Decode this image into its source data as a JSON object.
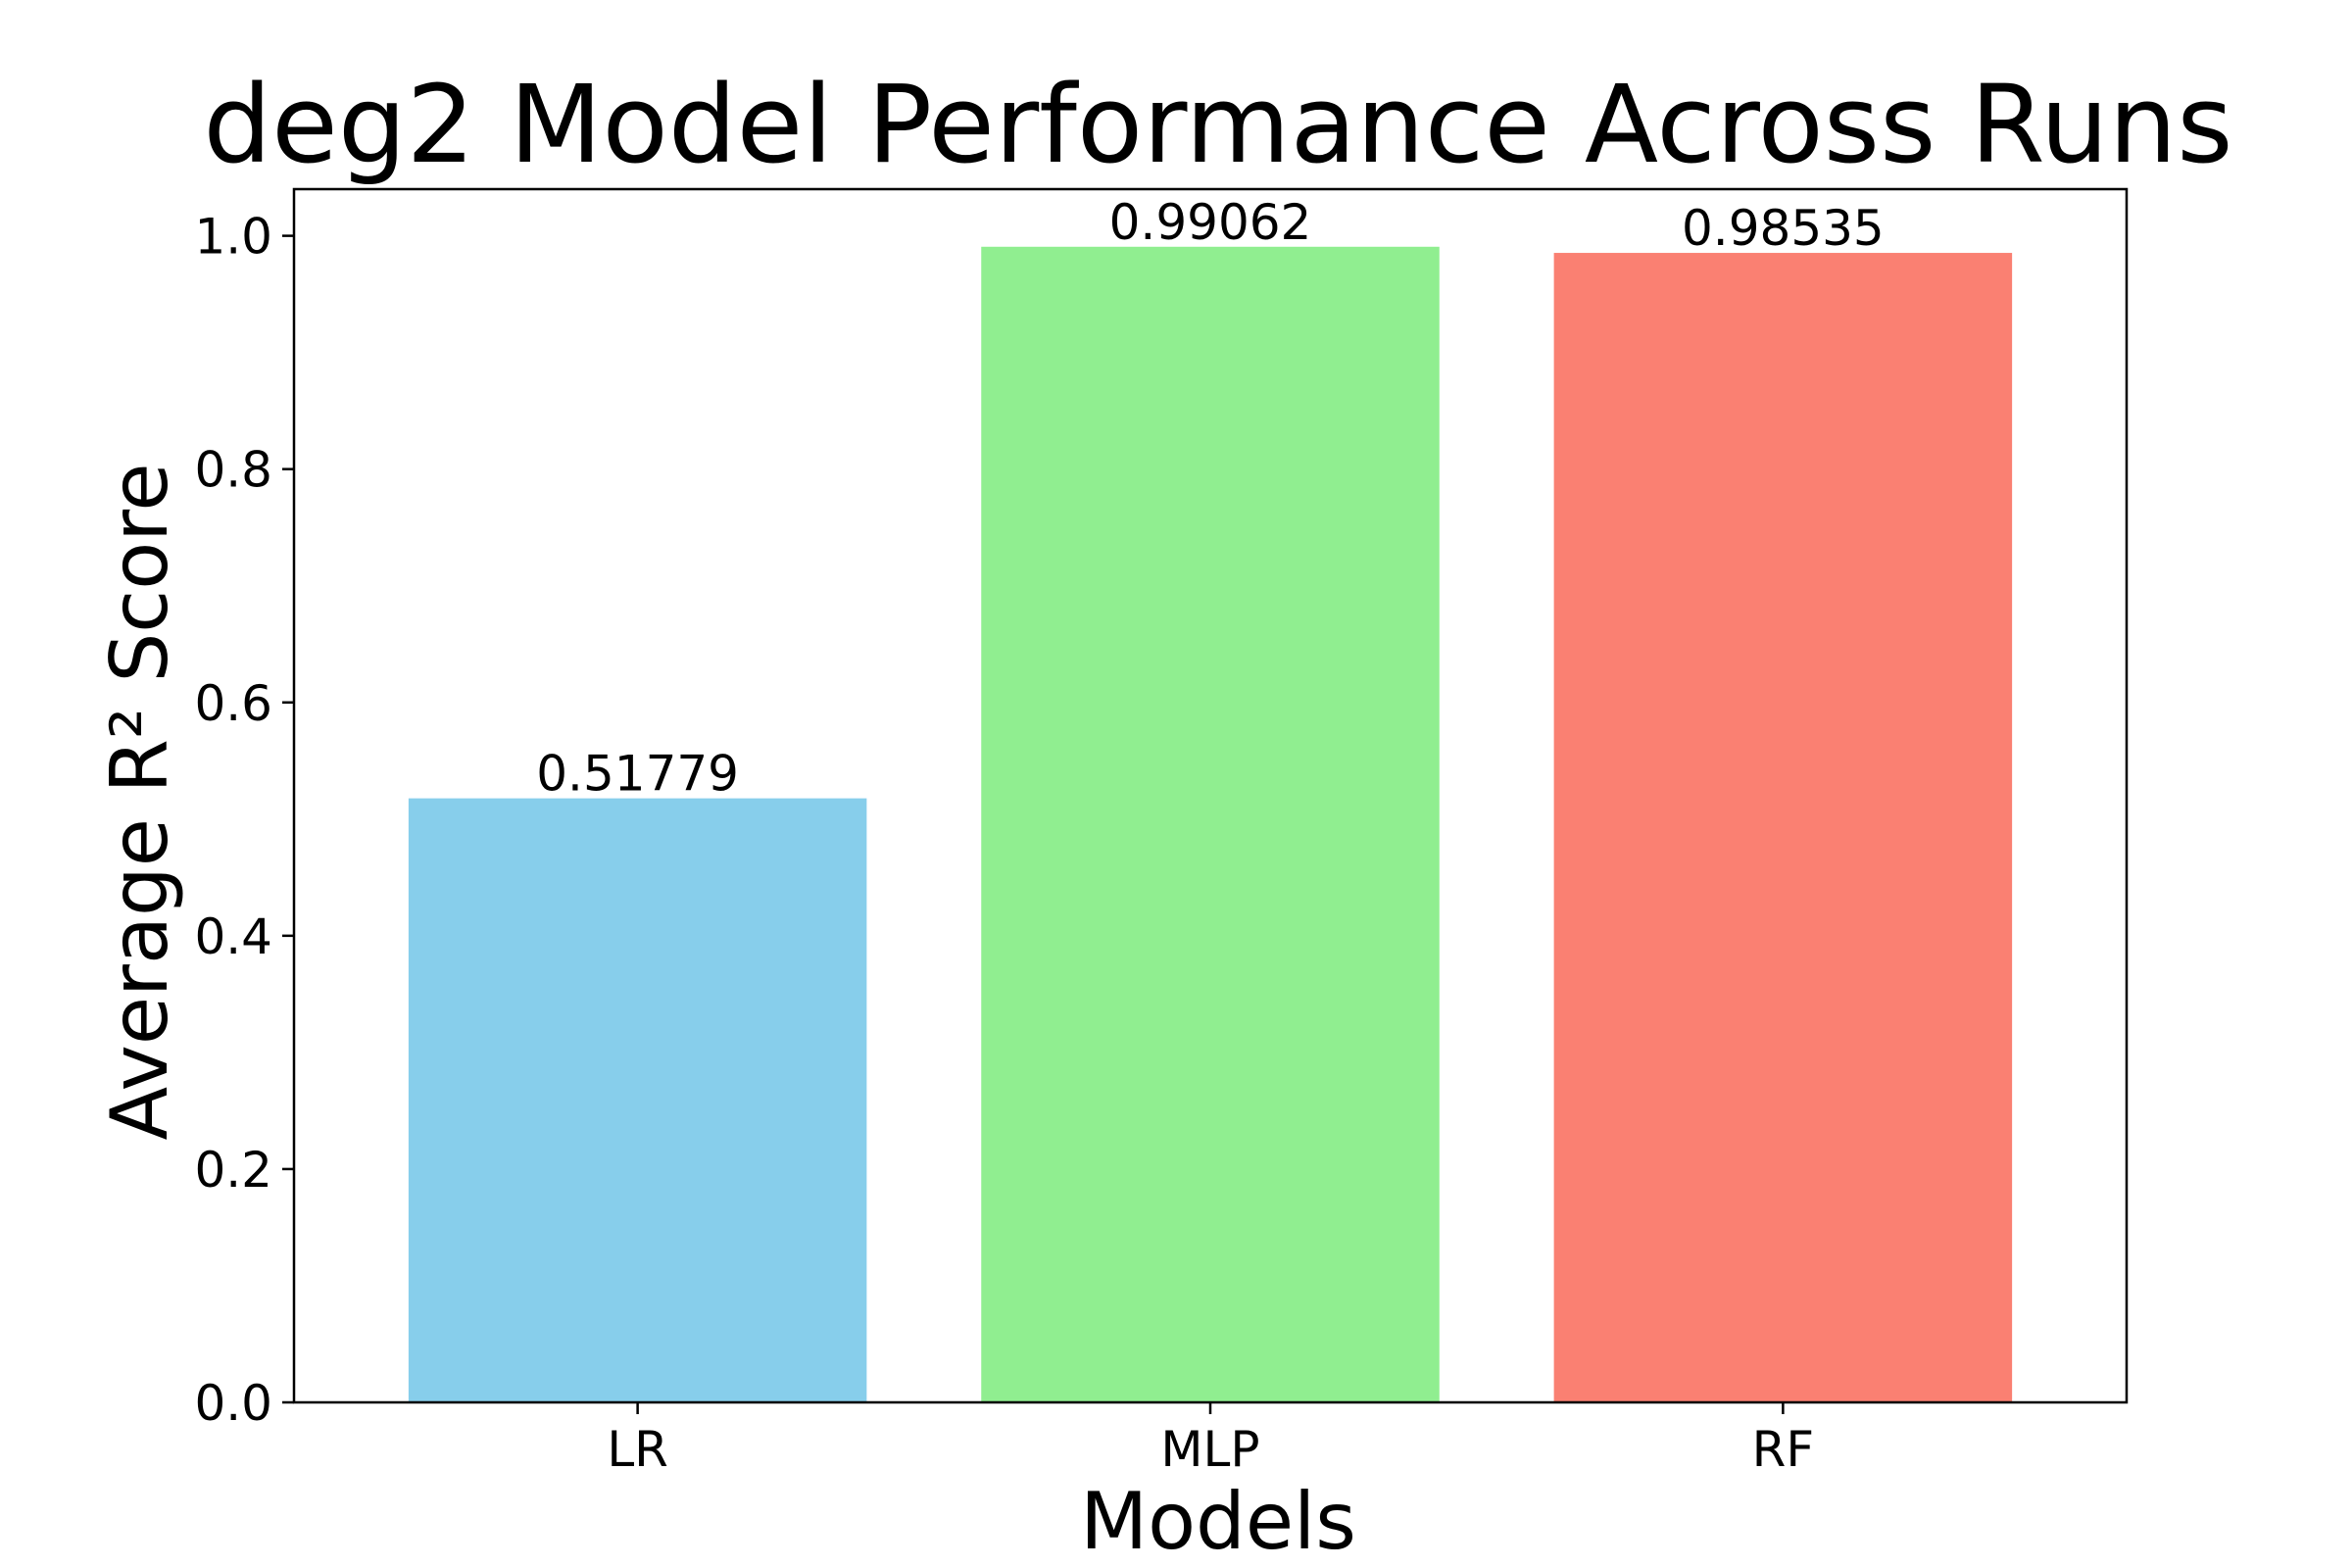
{
  "chart_data": {
    "type": "bar",
    "title": "deg2 Model Performance Across Runs",
    "xlabel": "Models",
    "ylabel": "Average R² Score",
    "categories": [
      "LR",
      "MLP",
      "RF"
    ],
    "values": [
      0.51779,
      0.99062,
      0.98535
    ],
    "value_labels": [
      "0.51779",
      "0.99062",
      "0.98535"
    ],
    "colors": [
      "#87ceeb",
      "#90ee90",
      "#fa8072"
    ],
    "ylim": [
      0,
      1.04
    ],
    "yticks": [
      0.0,
      0.2,
      0.4,
      0.6,
      0.8,
      1.0
    ],
    "ytick_labels": [
      "0.0",
      "0.2",
      "0.4",
      "0.6",
      "0.8",
      "1.0"
    ],
    "grid": false,
    "legend": false
  }
}
